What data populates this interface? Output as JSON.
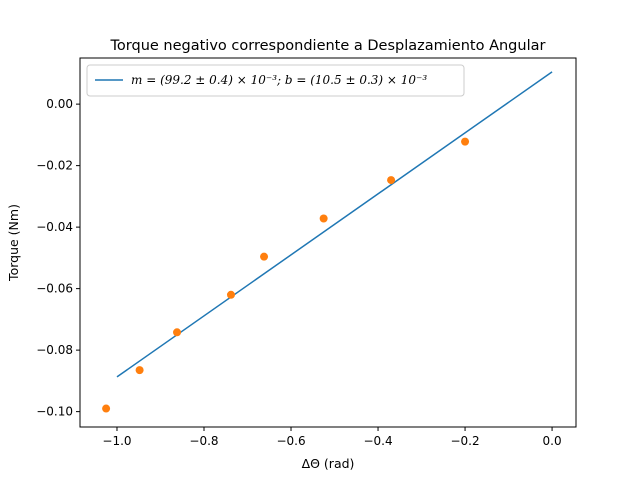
{
  "chart_data": {
    "type": "scatter",
    "title": "Torque negativo correspondiente a Desplazamiento Angular",
    "xlabel": "ΔΘ (rad)",
    "ylabel": "Torque (Nm)",
    "xlim": [
      -1.085,
      0.055
    ],
    "ylim": [
      -0.105,
      0.015
    ],
    "x_ticks": [
      -1.0,
      -0.8,
      -0.6,
      -0.4,
      -0.2,
      0.0
    ],
    "x_tick_labels": [
      "−1.0",
      "−0.8",
      "−0.6",
      "−0.4",
      "−0.2",
      "0.0"
    ],
    "y_ticks": [
      -0.1,
      -0.08,
      -0.06,
      -0.04,
      -0.02,
      0.0
    ],
    "y_tick_labels": [
      "−0.10",
      "−0.08",
      "−0.06",
      "−0.04",
      "−0.02",
      "0.00"
    ],
    "grid": false,
    "legend_position": "top-left",
    "series": [
      {
        "name": "m = (99.2 ± 0.4) × 10⁻³; b = (10.5 ± 0.3) × 10⁻³",
        "kind": "line",
        "color": "#1f77b4",
        "x": [
          -1.0,
          0.0
        ],
        "y": [
          -0.0887,
          0.0105
        ]
      },
      {
        "kind": "scatter",
        "color": "#ff7f0e",
        "x": [
          -1.025,
          -0.948,
          -0.862,
          -0.738,
          -0.662,
          -0.525,
          -0.37,
          -0.2
        ],
        "y": [
          -0.099,
          -0.0865,
          -0.0742,
          -0.062,
          -0.0496,
          -0.0372,
          -0.0247,
          -0.0122
        ]
      }
    ]
  }
}
